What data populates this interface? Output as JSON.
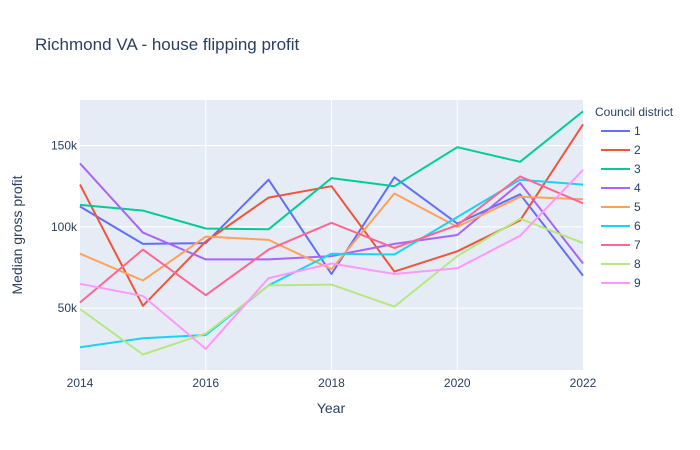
{
  "chart_data": {
    "type": "line",
    "title": "Richmond VA - house flipping profit",
    "xlabel": "Year",
    "ylabel": "Median gross profit",
    "xlim": [
      2014,
      2022
    ],
    "ylim": [
      12000,
      178000
    ],
    "x_ticks": [
      2014,
      2016,
      2018,
      2020,
      2022
    ],
    "y_ticks": [
      50000,
      100000,
      150000
    ],
    "y_tick_labels": [
      "50k",
      "100k",
      "150k"
    ],
    "legend_title": "Council district",
    "legend_position": "right",
    "grid": true,
    "background": "#e5ecf6",
    "x": [
      2014,
      2015,
      2016,
      2017,
      2018,
      2019,
      2020,
      2021,
      2022
    ],
    "series": [
      {
        "name": "1",
        "color": "#636efa",
        "values": [
          112500,
          89500,
          90000,
          129000,
          71000,
          130500,
          102000,
          120000,
          70000
        ]
      },
      {
        "name": "2",
        "color": "#ef553b",
        "values": [
          126000,
          51500,
          91000,
          118000,
          125000,
          72500,
          85000,
          104000,
          163000
        ]
      },
      {
        "name": "3",
        "color": "#00cc96",
        "values": [
          113500,
          110000,
          99000,
          98500,
          130000,
          125000,
          149000,
          140000,
          171000
        ]
      },
      {
        "name": "4",
        "color": "#ab63fa",
        "values": [
          139000,
          96500,
          80000,
          80000,
          82000,
          89500,
          95000,
          127000,
          77500
        ]
      },
      {
        "name": "5",
        "color": "#ffa15a",
        "values": [
          83500,
          67000,
          94000,
          92000,
          74000,
          120500,
          100000,
          118500,
          117000
        ]
      },
      {
        "name": "6",
        "color": "#19d3f3",
        "values": [
          26000,
          31500,
          33500,
          64000,
          83500,
          83000,
          106000,
          129000,
          126000
        ]
      },
      {
        "name": "7",
        "color": "#ff6692",
        "values": [
          53500,
          86000,
          58000,
          86000,
          102500,
          87000,
          101000,
          131000,
          114500
        ]
      },
      {
        "name": "8",
        "color": "#b6e880",
        "values": [
          49500,
          21500,
          34500,
          64000,
          64500,
          51000,
          82000,
          105000,
          90000
        ]
      },
      {
        "name": "9",
        "color": "#ff97ff",
        "values": [
          65000,
          57500,
          25000,
          68500,
          77500,
          71000,
          74500,
          94500,
          135000
        ]
      }
    ]
  }
}
